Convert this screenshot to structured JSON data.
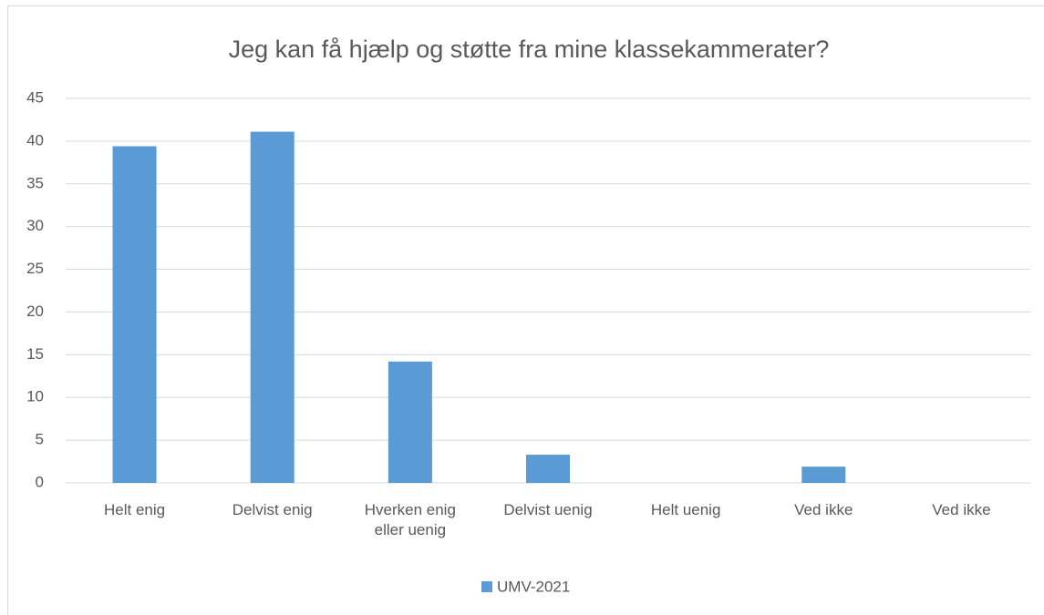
{
  "chart_data": {
    "type": "bar",
    "title": "Jeg kan få hjælp og støtte fra mine klassekammerater?",
    "categories": [
      "Helt enig",
      "Delvist enig",
      "Hverken enig eller uenig",
      "Delvist uenig",
      "Helt uenig",
      "Ved ikke",
      "Ved ikke"
    ],
    "series": [
      {
        "name": "UMV-2021",
        "color": "#5b9bd5",
        "values": [
          39.4,
          41.1,
          14.2,
          3.3,
          0,
          1.9,
          0
        ]
      }
    ],
    "ylim": [
      0,
      45
    ],
    "yticks": [
      0,
      5,
      10,
      15,
      20,
      25,
      30,
      35,
      40,
      45
    ],
    "grid": true,
    "legend": "bottom"
  }
}
